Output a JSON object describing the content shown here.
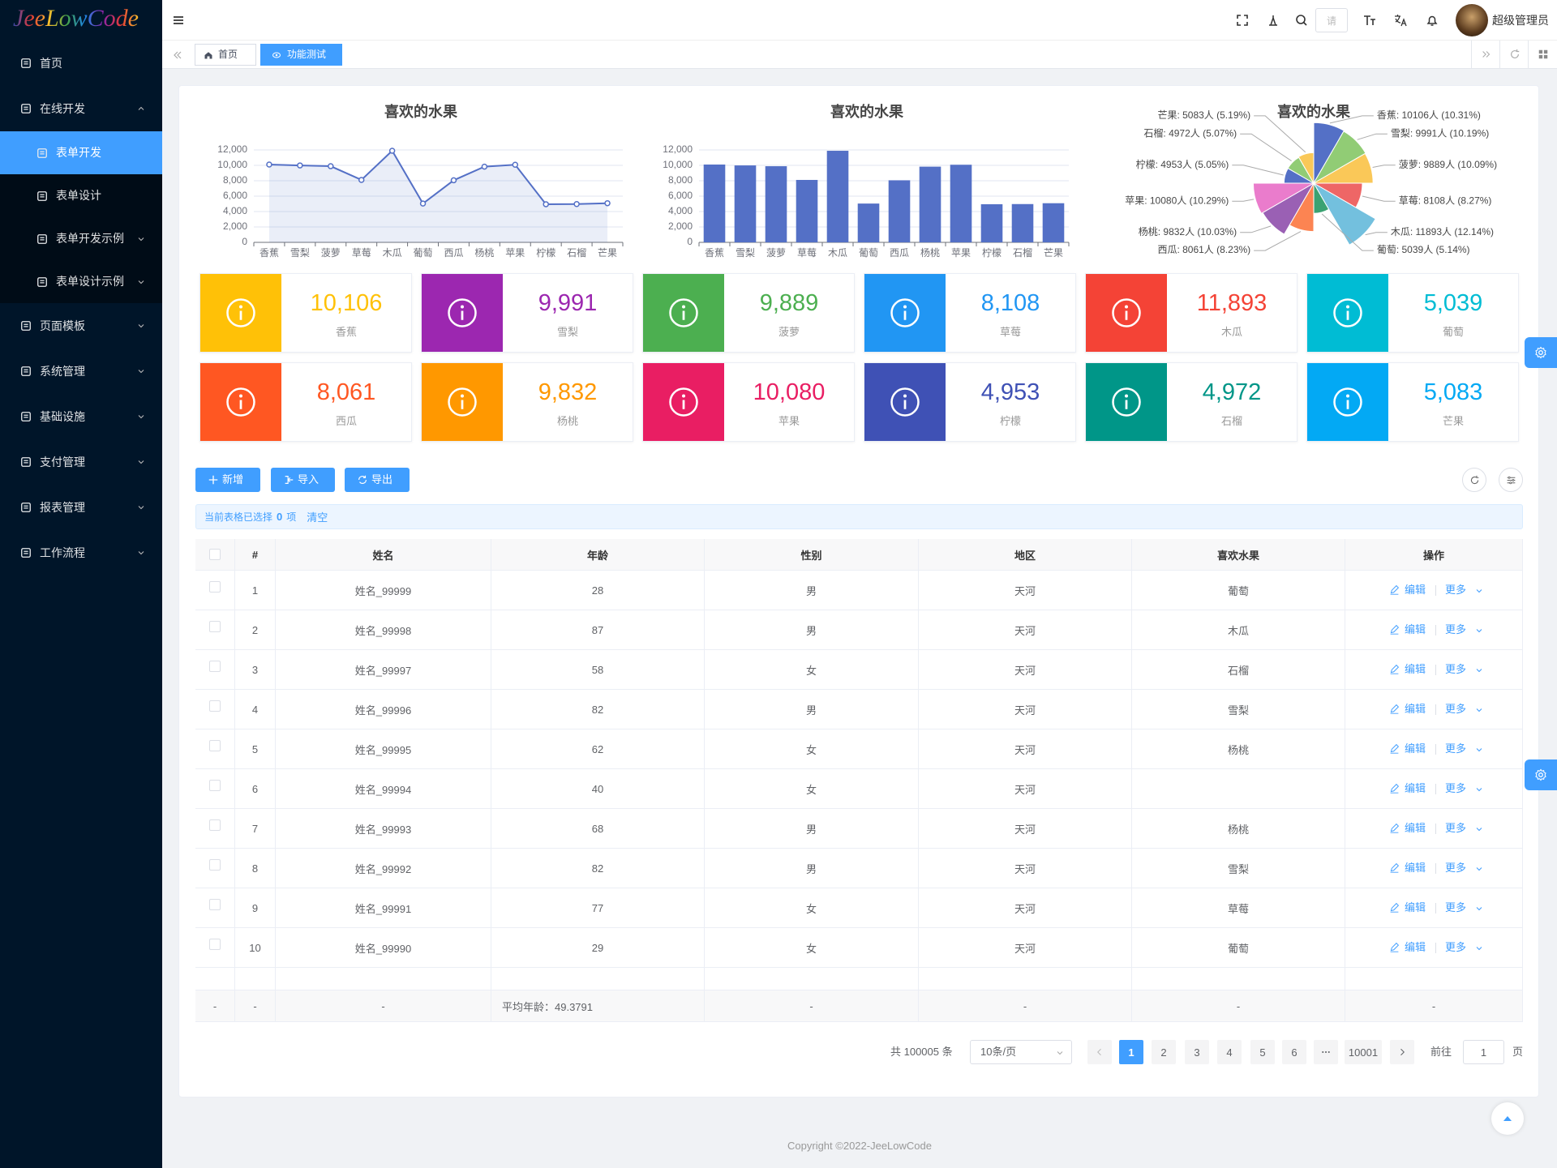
{
  "logo": "JeeLowCode",
  "menu": [
    {
      "label": "首页"
    },
    {
      "label": "在线开发",
      "expanded": true,
      "children": [
        {
          "label": "表单开发",
          "active": true
        },
        {
          "label": "表单设计"
        },
        {
          "label": "表单开发示例",
          "collapsed": true
        },
        {
          "label": "表单设计示例",
          "collapsed": true
        }
      ]
    },
    {
      "label": "页面模板",
      "collapsed": true
    },
    {
      "label": "系统管理",
      "collapsed": true
    },
    {
      "label": "基础设施",
      "collapsed": true
    },
    {
      "label": "支付管理",
      "collapsed": true
    },
    {
      "label": "报表管理",
      "collapsed": true
    },
    {
      "label": "工作流程",
      "collapsed": true
    }
  ],
  "header": {
    "search_placeholder": "请",
    "user": "超级管理员"
  },
  "tabs": [
    {
      "label": "首页"
    },
    {
      "label": "功能测试",
      "active": true
    }
  ],
  "chart_data": [
    {
      "type": "line",
      "title": "喜欢的水果",
      "categories": [
        "香蕉",
        "雪梨",
        "菠萝",
        "草莓",
        "木瓜",
        "葡萄",
        "西瓜",
        "杨桃",
        "苹果",
        "柠檬",
        "石榴",
        "芒果"
      ],
      "values": [
        10106,
        9991,
        9889,
        8108,
        11893,
        5039,
        8061,
        9832,
        10080,
        4953,
        4972,
        5083
      ],
      "color": "#5470c6",
      "area": true,
      "grid": true,
      "ylim": [
        0,
        12000
      ],
      "yticks": [
        0,
        {
          "value": 2000,
          "label": "2,000"
        },
        {
          "value": 4000,
          "label": "4,000"
        },
        {
          "value": 6000,
          "label": "6,000"
        },
        {
          "value": 8000,
          "label": "8,000"
        },
        {
          "value": 10000,
          "label": "10,000"
        },
        {
          "value": 12000,
          "label": "12,000"
        }
      ]
    },
    {
      "type": "bar",
      "title": "喜欢的水果",
      "categories": [
        "香蕉",
        "雪梨",
        "菠萝",
        "草莓",
        "木瓜",
        "葡萄",
        "西瓜",
        "杨桃",
        "苹果",
        "柠檬",
        "石榴",
        "芒果"
      ],
      "values": [
        10106,
        9991,
        9889,
        8108,
        11893,
        5039,
        8061,
        9832,
        10080,
        4953,
        4972,
        5083
      ],
      "color": "#5470c6",
      "grid": true,
      "ylim": [
        0,
        12000
      ],
      "yticks": [
        0,
        {
          "value": 2000,
          "label": "2,000"
        },
        {
          "value": 4000,
          "label": "4,000"
        },
        {
          "value": 6000,
          "label": "6,000"
        },
        {
          "value": 8000,
          "label": "8,000"
        },
        {
          "value": 10000,
          "label": "10,000"
        },
        {
          "value": 12000,
          "label": "12,000"
        }
      ]
    },
    {
      "type": "pie",
      "rose": true,
      "title": "喜欢的水果",
      "categories": [
        "香蕉",
        "雪梨",
        "菠萝",
        "草莓",
        "木瓜",
        "葡萄",
        "西瓜",
        "杨桃",
        "苹果",
        "柠檬",
        "石榴",
        "芒果"
      ],
      "values": [
        10106,
        9991,
        9889,
        8108,
        11893,
        5039,
        8061,
        9832,
        10080,
        4953,
        4972,
        5083
      ],
      "value_labels": [
        "香蕉: 10106人 (10.31%)",
        "雪梨: 9991人 (10.19%)",
        "菠萝: 9889人 (10.09%)",
        "草莓: 8108人 (8.27%)",
        "木瓜: 11893人 (12.14%)",
        "葡萄: 5039人 (5.14%)",
        "西瓜: 8061人 (8.23%)",
        "杨桃: 9832人 (10.03%)",
        "苹果: 10080人 (10.29%)",
        "柠檬: 4953人 (5.05%)",
        "石榴: 4972人 (5.07%)",
        "芒果: 5083人 (5.19%)"
      ],
      "colors": [
        "#5470c6",
        "#91cc75",
        "#fac858",
        "#ee6666",
        "#73c0de",
        "#3ba272",
        "#fc8452",
        "#9a60b4",
        "#ea7ccc",
        "#5470c6",
        "#91cc75",
        "#fac858"
      ]
    }
  ],
  "cards": [
    {
      "value": "10,106",
      "label": "香蕉",
      "color": "#ffc107"
    },
    {
      "value": "9,991",
      "label": "雪梨",
      "color": "#9c27b0"
    },
    {
      "value": "9,889",
      "label": "菠萝",
      "color": "#4caf50"
    },
    {
      "value": "8,108",
      "label": "草莓",
      "color": "#2196f3"
    },
    {
      "value": "11,893",
      "label": "木瓜",
      "color": "#f44336"
    },
    {
      "value": "5,039",
      "label": "葡萄",
      "color": "#00bcd4"
    },
    {
      "value": "8,061",
      "label": "西瓜",
      "color": "#ff5722"
    },
    {
      "value": "9,832",
      "label": "杨桃",
      "color": "#ff9800"
    },
    {
      "value": "10,080",
      "label": "苹果",
      "color": "#e91e63"
    },
    {
      "value": "4,953",
      "label": "柠檬",
      "color": "#3f51b5"
    },
    {
      "value": "4,972",
      "label": "石榴",
      "color": "#009688"
    },
    {
      "value": "5,083",
      "label": "芒果",
      "color": "#03a9f4"
    }
  ],
  "toolbar": [
    "新增",
    "导入",
    "导出"
  ],
  "selection": {
    "prefix": "当前表格已选择",
    "count": 0,
    "suffix": "项",
    "clear": "清空"
  },
  "table": {
    "columns": [
      "#",
      "姓名",
      "年龄",
      "性别",
      "地区",
      "喜欢水果",
      "操作"
    ],
    "rows": [
      [
        1,
        "姓名_99999",
        28,
        "男",
        "天河",
        "葡萄"
      ],
      [
        2,
        "姓名_99998",
        87,
        "男",
        "天河",
        "木瓜"
      ],
      [
        3,
        "姓名_99997",
        58,
        "女",
        "天河",
        "石榴"
      ],
      [
        4,
        "姓名_99996",
        82,
        "男",
        "天河",
        "雪梨"
      ],
      [
        5,
        "姓名_99995",
        62,
        "女",
        "天河",
        "杨桃"
      ],
      [
        6,
        "姓名_99994",
        40,
        "女",
        "天河",
        null
      ],
      [
        7,
        "姓名_99993",
        68,
        "男",
        "天河",
        "杨桃"
      ],
      [
        8,
        "姓名_99992",
        82,
        "男",
        "天河",
        "雪梨"
      ],
      [
        9,
        "姓名_99991",
        77,
        "女",
        "天河",
        "草莓"
      ],
      [
        10,
        "姓名_99990",
        29,
        "女",
        "天河",
        "葡萄"
      ]
    ],
    "actions": {
      "edit": "编辑",
      "more": "更多"
    },
    "summary": [
      "-",
      "-",
      "-",
      "平均年龄：49.3791",
      "-",
      "-",
      "-",
      "-"
    ]
  },
  "pagination": {
    "total": "共 100005 条",
    "page_size": "10条/页",
    "pages": [
      1,
      2,
      3,
      4,
      5,
      6,
      10001
    ],
    "current": 1,
    "goto": "前往",
    "goto_value": 1,
    "page_unit": "页"
  },
  "footer": "Copyright ©2022-JeeLowCode"
}
